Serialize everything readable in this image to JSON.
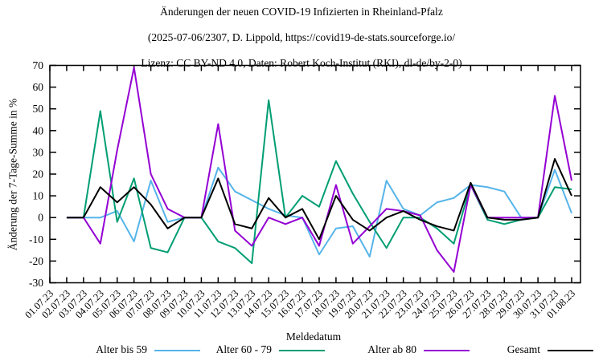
{
  "title_line1": "Änderungen der neuen COVID-19 Infizierten in Rheinland-Pfalz",
  "title_line2": "(2025-07-06/2307, D. Lippold, https://covid19-de-stats.sourceforge.io/",
  "title_line3": "Lizenz: CC BY-ND 4.0, Daten: Robert Koch-Institut (RKI), dl-de/by-2-0)",
  "chart_data": {
    "type": "line",
    "title": "Änderungen der neuen COVID-19 Infizierten in Rheinland-Pfalz",
    "xlabel": "Meldedatum",
    "ylabel": "Änderung der 7-Tage-Summe in %",
    "ylim": [
      -30,
      70
    ],
    "ytick_step": 10,
    "ytick_labels": [
      "-30",
      "-20",
      "-10",
      "0",
      "10",
      "20",
      "30",
      "40",
      "50",
      "60",
      "70"
    ],
    "grid": false,
    "legend_position": "bottom",
    "x_labels": [
      "01.07.23",
      "02.07.23",
      "03.07.23",
      "04.07.23",
      "05.07.23",
      "06.07.23",
      "07.07.23",
      "08.07.23",
      "09.07.23",
      "10.07.23",
      "11.07.23",
      "12.07.23",
      "13.07.23",
      "14.07.23",
      "15.07.23",
      "16.07.23",
      "17.07.23",
      "18.07.23",
      "19.07.23",
      "20.07.23",
      "21.07.23",
      "22.07.23",
      "23.07.23",
      "24.07.23",
      "25.07.23",
      "26.07.23",
      "27.07.23",
      "28.07.23",
      "29.07.23",
      "30.07.23",
      "31.07.23",
      "01.08.23"
    ],
    "series": [
      {
        "name": "Alter bis 59",
        "color": "#56b4e9",
        "values": [
          null,
          0,
          0,
          0,
          3,
          -11,
          17,
          -2,
          0,
          0,
          23,
          12,
          8,
          4,
          1,
          0,
          -17,
          -5,
          -4,
          -18,
          17,
          4,
          1,
          7,
          9,
          15,
          14,
          12,
          0,
          0,
          22,
          2
        ]
      },
      {
        "name": "Alter 60 - 79",
        "color": "#009e73",
        "values": [
          null,
          0,
          0,
          49,
          -2,
          18,
          -14,
          -16,
          0,
          0,
          -11,
          -14,
          -21,
          54,
          0,
          10,
          5,
          26,
          11,
          -2,
          -14,
          0,
          0,
          -5,
          -12,
          15,
          -1,
          -3,
          -1,
          0,
          14,
          13
        ]
      },
      {
        "name": "Alter ab 80",
        "color": "#9400d3",
        "values": [
          null,
          0,
          0,
          -12,
          31,
          69,
          20,
          4,
          0,
          0,
          43,
          -6,
          -13,
          0,
          -3,
          0,
          -13,
          15,
          -12,
          -4,
          4,
          3,
          1,
          -15,
          -25,
          15,
          0,
          0,
          0,
          0,
          56,
          17
        ]
      },
      {
        "name": "Gesamt",
        "color": "#000000",
        "values": [
          null,
          0,
          0,
          14,
          7,
          14,
          6,
          -5,
          0,
          0,
          18,
          -3,
          -5,
          9,
          0,
          4,
          -10,
          10,
          -1,
          -6,
          0,
          3,
          -1,
          -4,
          -6,
          16,
          0,
          -1,
          -1,
          0,
          27,
          10
        ]
      }
    ]
  },
  "legend": {
    "item1": "Alter bis 59",
    "item2": "Alter 60 - 79",
    "item3": "Alter ab 80",
    "item4": "Gesamt"
  },
  "axis": {
    "x_title": "Meldedatum",
    "y_title": "Änderung der 7-Tage-Summe in %"
  }
}
